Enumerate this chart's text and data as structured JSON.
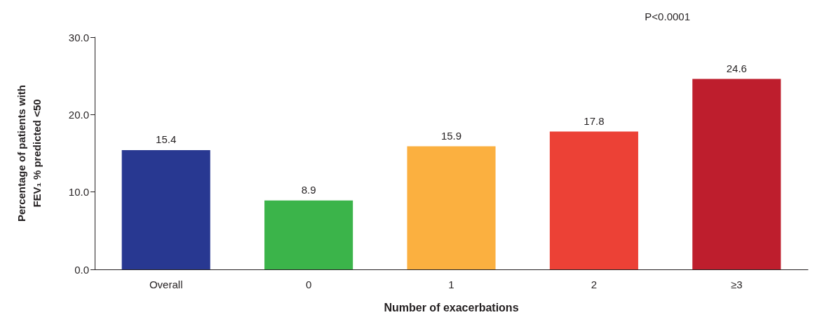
{
  "chart_data": {
    "type": "bar",
    "xlabel": "Number of exacerbations",
    "ylabel": "Percentage of patients with\nFEV₁ % predicted <50",
    "categories": [
      "Overall",
      "0",
      "1",
      "2",
      "≥3"
    ],
    "values": [
      15.4,
      8.9,
      15.9,
      17.8,
      24.6
    ],
    "colors": [
      "#283891",
      "#3bb44a",
      "#fbb040",
      "#ec4136",
      "#be1e2d"
    ],
    "ylim": [
      0,
      30
    ],
    "yticks": [
      {
        "value": 0,
        "label": "0.0"
      },
      {
        "value": 10,
        "label": "10.0"
      },
      {
        "value": 20,
        "label": "20.0"
      },
      {
        "value": 30,
        "label": "30.0"
      }
    ],
    "data_labels": true,
    "grid": false,
    "annotations": [
      "P<0.0001"
    ]
  }
}
